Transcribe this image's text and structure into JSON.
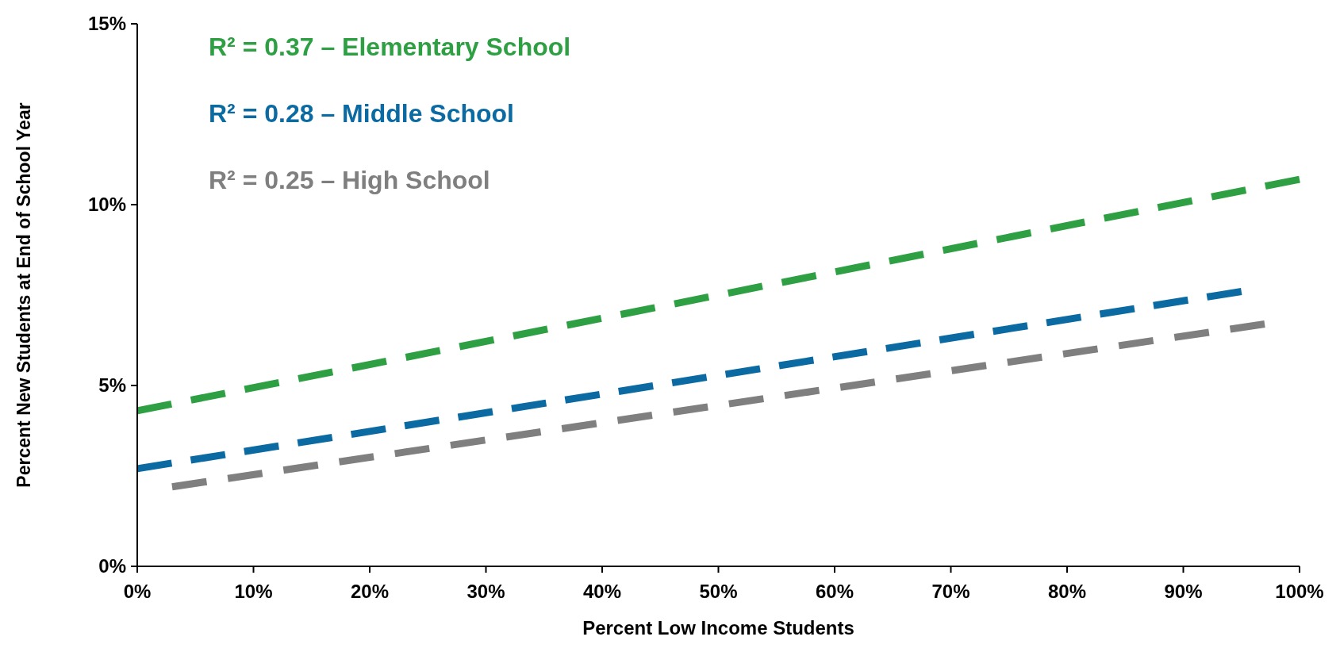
{
  "chart_data": {
    "type": "line",
    "xlabel": "Percent Low Income Students",
    "ylabel": "Percent New Students at End of School Year",
    "xlim": [
      0,
      100
    ],
    "ylim": [
      0,
      15
    ],
    "xticks": [
      {
        "value": 0,
        "label": "0%"
      },
      {
        "value": 10,
        "label": "10%"
      },
      {
        "value": 20,
        "label": "20%"
      },
      {
        "value": 30,
        "label": "30%"
      },
      {
        "value": 40,
        "label": "40%"
      },
      {
        "value": 50,
        "label": "50%"
      },
      {
        "value": 60,
        "label": "60%"
      },
      {
        "value": 70,
        "label": "70%"
      },
      {
        "value": 80,
        "label": "80%"
      },
      {
        "value": 90,
        "label": "90%"
      },
      {
        "value": 100,
        "label": "100%"
      }
    ],
    "yticks": [
      {
        "value": 0,
        "label": "0%"
      },
      {
        "value": 5,
        "label": "5%"
      },
      {
        "value": 10,
        "label": "10%"
      },
      {
        "value": 15,
        "label": "15%"
      }
    ],
    "grid": false,
    "legend": "top left",
    "line_style": "dashed",
    "series": [
      {
        "name": "R² = 0.37 – Elementary School",
        "color": "#2ea043",
        "x": [
          0,
          100
        ],
        "values": [
          4.3,
          10.7
        ]
      },
      {
        "name": "R² = 0.28 – Middle School",
        "color": "#0a6aa1",
        "x": [
          0,
          95
        ],
        "values": [
          2.7,
          7.6
        ]
      },
      {
        "name": "R² = 0.25 – High School",
        "color": "#7f7f7f",
        "x": [
          3,
          97
        ],
        "values": [
          2.2,
          6.7
        ]
      }
    ]
  }
}
